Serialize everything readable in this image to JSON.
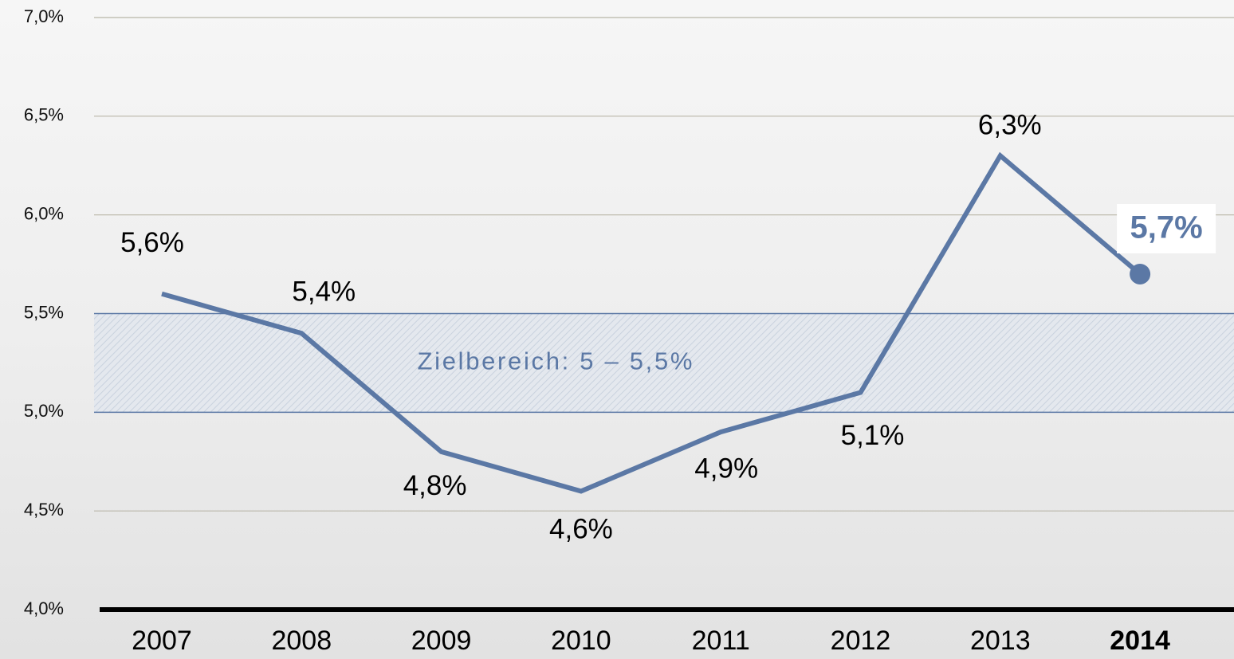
{
  "chart_data": {
    "type": "line",
    "categories": [
      "2007",
      "2008",
      "2009",
      "2010",
      "2011",
      "2012",
      "2013",
      "2014"
    ],
    "series": [
      {
        "color": "#5b78a5",
        "values": [
          5.6,
          5.4,
          4.8,
          4.6,
          4.9,
          5.1,
          6.3,
          5.7
        ],
        "value_labels": [
          "5,6%",
          "5,4%",
          "4,8%",
          "4,6%",
          "4,9%",
          "5,1%",
          "6,3%",
          "5,7%"
        ]
      }
    ],
    "ylim": [
      4,
      7
    ],
    "yticks": [
      {
        "value": 4,
        "label": "4,0%"
      },
      {
        "value": 4.5,
        "label": "4,5%"
      },
      {
        "value": 5,
        "label": "5,0%"
      },
      {
        "value": 5.5,
        "label": "5,5%"
      },
      {
        "value": 6,
        "label": "6,0%"
      },
      {
        "value": 6.5,
        "label": "6,5%"
      },
      {
        "value": 7,
        "label": "7,0%"
      }
    ],
    "grid": true,
    "target_band": {
      "from": 5,
      "to": 5.5,
      "label": "Zielbereich: 5 – 5,5%"
    },
    "highlight_last": true
  }
}
